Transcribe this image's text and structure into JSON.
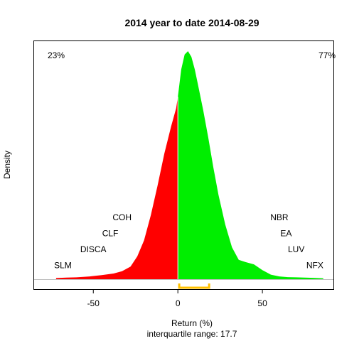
{
  "chart_data": {
    "type": "area",
    "title": "2014  year to date 2014-08-29",
    "xlabel": "Return (%)",
    "subtitle": "interquartile range: 17.7",
    "ylabel": "Density",
    "xlim": [
      -85,
      92
    ],
    "x_ticks": [
      -50,
      0,
      50
    ],
    "x_tick_labels": [
      "-50",
      "0",
      "50"
    ],
    "ylim": [
      0,
      1
    ],
    "split_at": 0,
    "negative_share_label": "23%",
    "positive_share_label": "77%",
    "negative_color": "#ff0000",
    "positive_color": "#00ee00",
    "iqr_bracket": {
      "q1": 0.8,
      "q3": 18.5,
      "color": "#ffc000"
    },
    "density": {
      "x": [
        -72,
        -66,
        -60,
        -52,
        -45,
        -38,
        -33,
        -28,
        -24,
        -20,
        -16,
        -12,
        -8,
        -4,
        -1,
        0,
        2,
        4,
        6,
        8,
        10,
        12,
        15,
        18,
        21,
        24,
        28,
        32,
        36,
        40,
        45,
        50,
        55,
        60,
        65,
        70,
        75,
        80,
        86
      ],
      "y": [
        0.005,
        0.007,
        0.008,
        0.012,
        0.018,
        0.025,
        0.035,
        0.055,
        0.1,
        0.17,
        0.28,
        0.41,
        0.55,
        0.67,
        0.75,
        0.8,
        0.92,
        0.985,
        1.0,
        0.975,
        0.92,
        0.85,
        0.74,
        0.62,
        0.49,
        0.37,
        0.24,
        0.14,
        0.085,
        0.075,
        0.065,
        0.04,
        0.02,
        0.012,
        0.009,
        0.008,
        0.007,
        0.006,
        0.004
      ]
    },
    "annotations": [
      {
        "text": "SLM",
        "x": -68,
        "y": 0.048
      },
      {
        "text": "DISCA",
        "x": -50,
        "y": 0.118
      },
      {
        "text": "CLF",
        "x": -40,
        "y": 0.188
      },
      {
        "text": "COH",
        "x": -33,
        "y": 0.258
      },
      {
        "text": "NBR",
        "x": 60,
        "y": 0.258
      },
      {
        "text": "EA",
        "x": 64,
        "y": 0.188
      },
      {
        "text": "LUV",
        "x": 70,
        "y": 0.118
      },
      {
        "text": "NFX",
        "x": 81,
        "y": 0.048
      }
    ]
  }
}
